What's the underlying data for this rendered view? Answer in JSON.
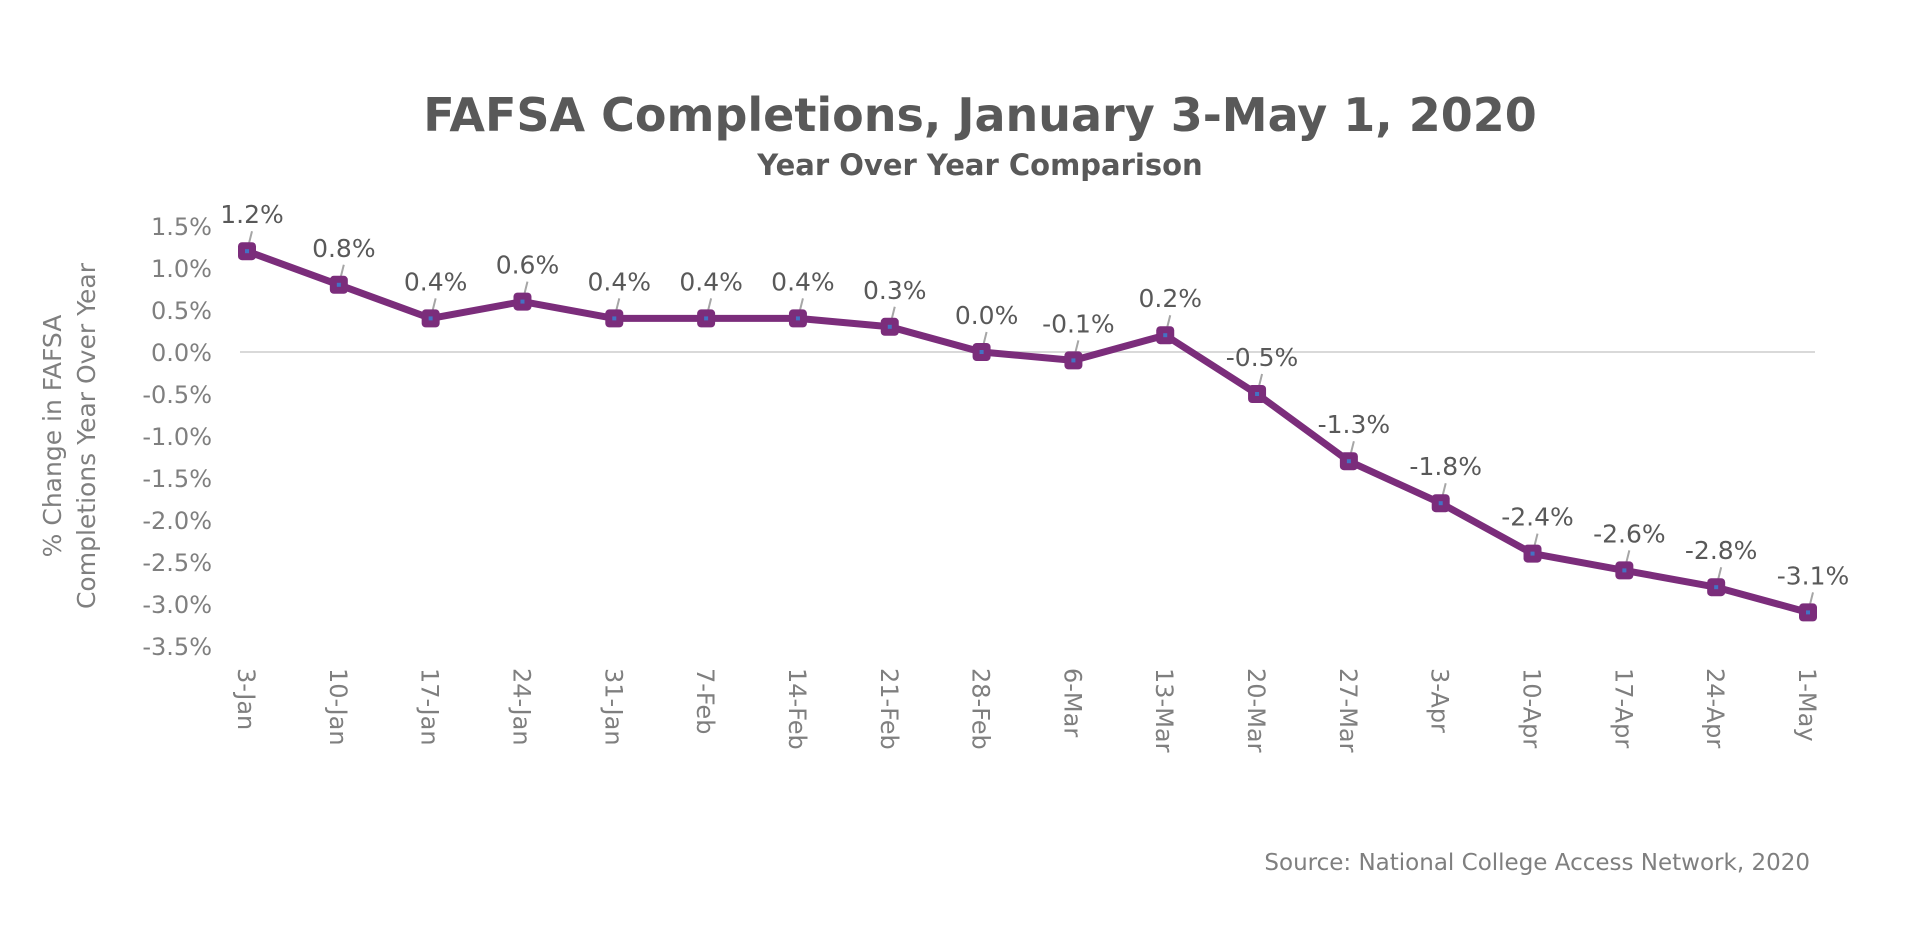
{
  "chart_data": {
    "type": "line",
    "title": "FAFSA Completions, January 3-May 1, 2020",
    "subtitle": "Year Over Year Comparison",
    "ylabel": "% Change in FAFSA\nCompletions Year Over Year",
    "xlabel": "",
    "source": "Source: National College Access Network, 2020",
    "categories": [
      "3-Jan",
      "10-Jan",
      "17-Jan",
      "24-Jan",
      "31-Jan",
      "7-Feb",
      "14-Feb",
      "21-Feb",
      "28-Feb",
      "6-Mar",
      "13-Mar",
      "20-Mar",
      "27-Mar",
      "3-Apr",
      "10-Apr",
      "17-Apr",
      "24-Apr",
      "1-May"
    ],
    "values": [
      1.2,
      0.8,
      0.4,
      0.6,
      0.4,
      0.4,
      0.4,
      0.3,
      0.0,
      -0.1,
      0.2,
      -0.5,
      -1.3,
      -1.8,
      -2.4,
      -2.6,
      -2.8,
      -3.1
    ],
    "data_labels": [
      "1.2%",
      "0.8%",
      "0.4%",
      "0.6%",
      "0.4%",
      "0.4%",
      "0.4%",
      "0.3%",
      "0.0%",
      "-0.1%",
      "0.2%",
      "-0.5%",
      "-1.3%",
      "-1.8%",
      "-2.4%",
      "-2.6%",
      "-2.8%",
      "-3.1%"
    ],
    "yticks": [
      "1.5%",
      "1.0%",
      "0.5%",
      "0.0%",
      "-0.5%",
      "-1.0%",
      "-1.5%",
      "-2.0%",
      "-2.5%",
      "-3.0%",
      "-3.5%"
    ],
    "ylim": [
      -3.5,
      1.5
    ],
    "grid": false,
    "zero_line": true,
    "legend": "none",
    "colors": {
      "line": "#7B2D7B",
      "text": "#595959",
      "axis_text": "#7f7f7f",
      "zero_line": "#d9d9d9"
    }
  }
}
